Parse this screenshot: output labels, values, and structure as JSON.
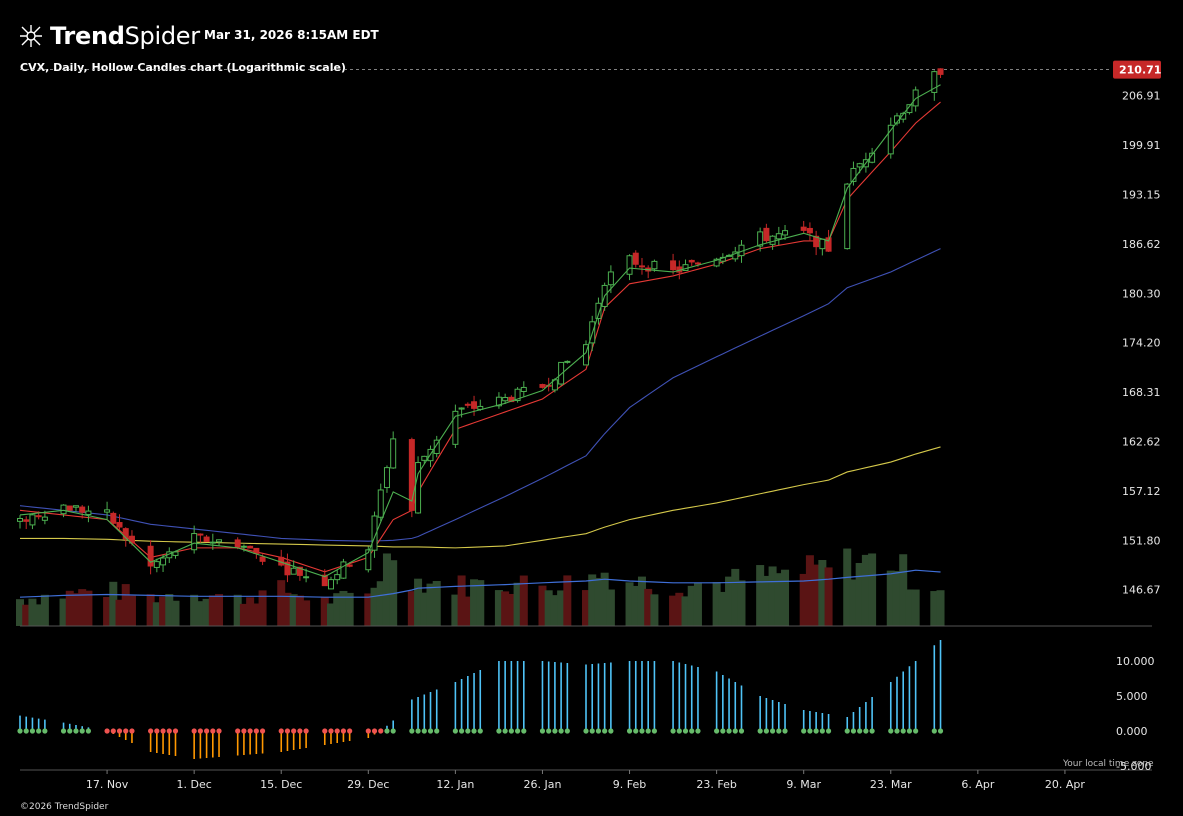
{
  "header": {
    "brand_bold": "Trend",
    "brand_light": "Spider",
    "timestamp": "Mar 31, 2026 8:15AM EDT",
    "subtitle": "CVX, Daily, Hollow Candles chart (Logarithmic scale)"
  },
  "footer": {
    "copyright": "©2026 TrendSpider"
  },
  "colors": {
    "up": "#4caf50",
    "down": "#c62828",
    "ema_fast": "#4caf50",
    "ema_slow": "#e53935",
    "sma_mid": "#3f51b5",
    "sma_long": "#d4c84a",
    "volume_ma": "#3f6fd8",
    "hist_pos": "#4fc3f7",
    "hist_neg": "#ff9800",
    "dot_green": "#66bb6a",
    "dot_red": "#ef5350"
  },
  "chart_data": {
    "type": "candlestick",
    "title": "CVX, Daily, Hollow Candles chart (Logarithmic scale)",
    "y_scale": "log",
    "ylim": [
      143.0,
      214.5
    ],
    "last_price": "210.71",
    "y_ticks": [
      "206.91",
      "199.91",
      "193.15",
      "186.62",
      "180.30",
      "174.20",
      "168.31",
      "162.62",
      "157.12",
      "151.80",
      "146.67"
    ],
    "x_ticks": [
      "17. Nov",
      "1. Dec",
      "15. Dec",
      "29. Dec",
      "12. Jan",
      "26. Jan",
      "9. Feb",
      "23. Feb",
      "9. Mar",
      "23. Mar",
      "6. Apr",
      "20. Apr"
    ],
    "x_tick_dates": [
      "2025-11-17",
      "2025-12-01",
      "2025-12-15",
      "2025-12-29",
      "2026-01-12",
      "2026-01-26",
      "2026-02-09",
      "2026-02-23",
      "2026-03-09",
      "2026-03-23",
      "2026-04-06",
      "2026-04-20"
    ],
    "x_range": [
      "2025-11-03",
      "2026-05-04"
    ],
    "close_anchor_dates": [
      "2025-11-03",
      "2025-11-10",
      "2025-11-17",
      "2025-11-24",
      "2025-12-01",
      "2025-12-08",
      "2025-12-15",
      "2025-12-22",
      "2025-12-29",
      "2026-01-02",
      "2026-01-05",
      "2026-01-06",
      "2026-01-12",
      "2026-01-20",
      "2026-01-26",
      "2026-02-02",
      "2026-02-05",
      "2026-02-09",
      "2026-02-16",
      "2026-02-23",
      "2026-03-02",
      "2026-03-09",
      "2026-03-13",
      "2026-03-16",
      "2026-03-23",
      "2026-03-27",
      "2026-03-31"
    ],
    "close_anchor_values": [
      154.0,
      155.5,
      154.5,
      149.0,
      152.0,
      151.5,
      149.0,
      147.5,
      151.0,
      163.0,
      155.0,
      160.0,
      166.0,
      167.5,
      169.0,
      174.0,
      182.0,
      184.5,
      183.0,
      185.0,
      187.5,
      188.0,
      186.0,
      195.0,
      203.0,
      207.0,
      210.71
    ],
    "ema_fast_anchors": [
      154.5,
      155.0,
      154.0,
      149.5,
      151.5,
      151.0,
      149.5,
      148.0,
      150.5,
      157.0,
      156.0,
      159.0,
      165.5,
      167.0,
      168.5,
      173.0,
      180.0,
      183.5,
      183.0,
      184.5,
      186.5,
      188.0,
      187.0,
      194.0,
      202.0,
      206.5,
      208.5
    ],
    "ema_slow_anchors": [
      155.0,
      154.5,
      154.0,
      150.0,
      151.0,
      151.0,
      150.0,
      148.5,
      150.0,
      154.0,
      155.0,
      157.0,
      164.0,
      166.0,
      167.5,
      171.0,
      178.5,
      181.5,
      182.5,
      184.0,
      186.0,
      187.0,
      187.0,
      192.5,
      199.0,
      203.0,
      206.0
    ],
    "sma_mid_anchors": [
      155.5,
      155.0,
      154.5,
      153.5,
      153.0,
      152.5,
      152.0,
      151.8,
      151.7,
      151.8,
      152.0,
      152.2,
      154.0,
      156.5,
      158.5,
      161.0,
      163.5,
      166.5,
      170.0,
      172.5,
      175.0,
      177.5,
      179.0,
      181.0,
      183.0,
      184.5,
      186.0
    ],
    "sma_long_anchors": [
      152.0,
      152.0,
      151.9,
      151.7,
      151.6,
      151.5,
      151.4,
      151.3,
      151.2,
      151.1,
      151.1,
      151.1,
      151.0,
      151.2,
      151.8,
      152.5,
      153.2,
      154.0,
      155.0,
      155.8,
      156.8,
      157.8,
      158.3,
      159.2,
      160.3,
      161.2,
      162.0
    ],
    "volume_relative_anchors": [
      0.3,
      0.35,
      0.4,
      0.32,
      0.38,
      0.3,
      0.4,
      0.28,
      0.35,
      0.85,
      0.55,
      0.5,
      0.45,
      0.48,
      0.45,
      0.5,
      0.6,
      0.5,
      0.45,
      0.48,
      0.55,
      0.6,
      0.65,
      0.7,
      0.75,
      0.5,
      0.45
    ],
    "volume_ma_relative_anchors": [
      0.32,
      0.34,
      0.35,
      0.34,
      0.33,
      0.33,
      0.33,
      0.32,
      0.32,
      0.36,
      0.4,
      0.42,
      0.44,
      0.46,
      0.48,
      0.5,
      0.52,
      0.5,
      0.48,
      0.48,
      0.49,
      0.5,
      0.52,
      0.54,
      0.58,
      0.62,
      0.6
    ],
    "oscillator": {
      "ylim": [
        -5.0,
        13.0
      ],
      "y_ticks": [
        "10.000",
        "5.000",
        "0.000",
        "-5.000"
      ],
      "anchor_dates": [
        "2025-11-03",
        "2025-11-10",
        "2025-11-17",
        "2025-11-24",
        "2025-12-01",
        "2025-12-15",
        "2025-12-29",
        "2025-12-31",
        "2026-01-02",
        "2026-01-05",
        "2026-01-12",
        "2026-01-19",
        "2026-01-26",
        "2026-02-02",
        "2026-02-09",
        "2026-02-16",
        "2026-02-23",
        "2026-03-02",
        "2026-03-09",
        "2026-03-16",
        "2026-03-23",
        "2026-03-31"
      ],
      "anchor_values": [
        2.2,
        1.2,
        0.0,
        -3.0,
        -4.0,
        -3.0,
        -1.0,
        0.0,
        1.5,
        4.5,
        7.0,
        10.0,
        10.0,
        9.5,
        10.0,
        10.0,
        8.5,
        5.0,
        3.0,
        2.0,
        7.0,
        13.0
      ]
    },
    "notes": [
      "Your local time zone"
    ]
  }
}
